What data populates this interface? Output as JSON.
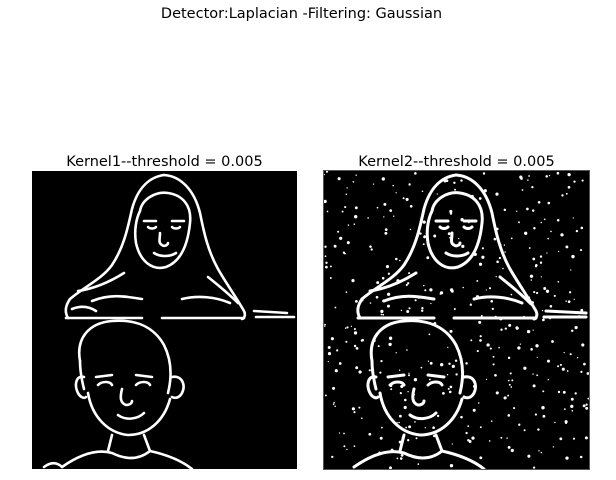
{
  "figure": {
    "suptitle": "Detector:Laplacian -Filtering: Gaussian"
  },
  "panels": [
    {
      "title": "Kernel1--threshold = 0.005",
      "image": "binary-edge-map-two-faces",
      "noise": "low"
    },
    {
      "title": "Kernel2--threshold = 0.005",
      "image": "binary-edge-map-two-faces",
      "noise": "high"
    }
  ],
  "colors": {
    "background": "#ffffff",
    "image_background": "#000000",
    "edges": "#ffffff"
  }
}
